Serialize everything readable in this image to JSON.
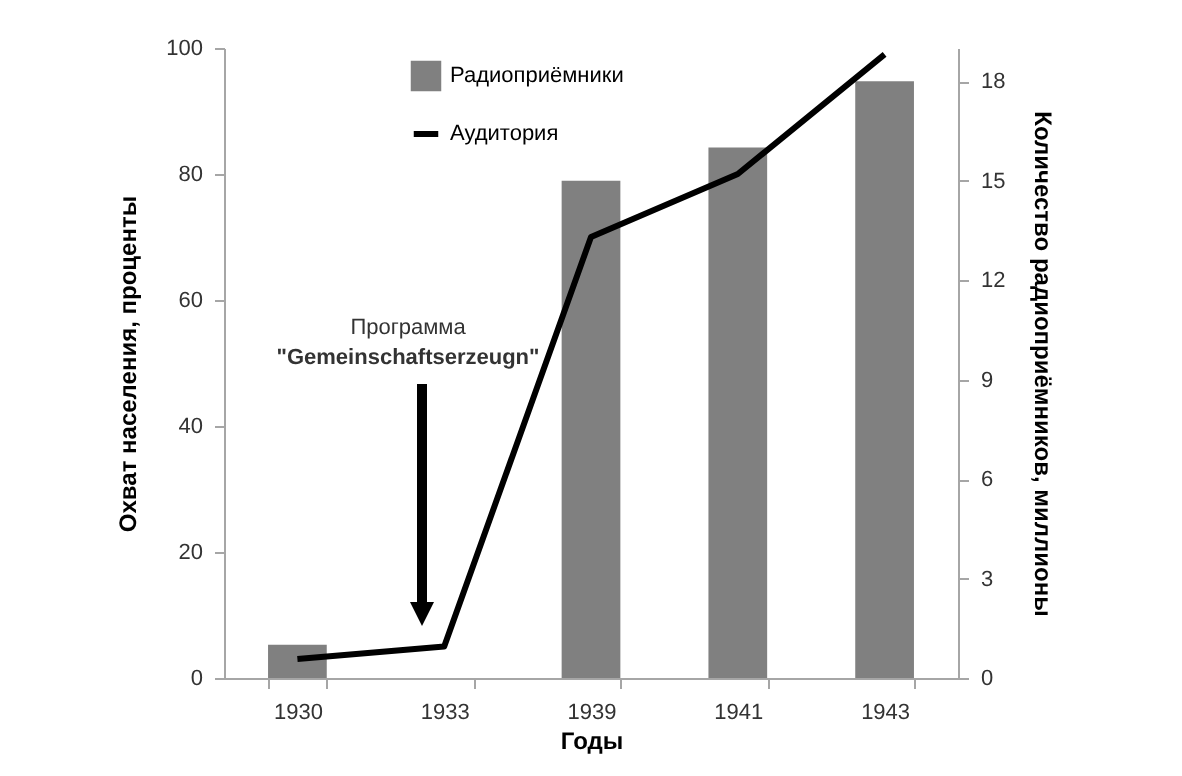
{
  "chart_data": {
    "type": "bar",
    "categories": [
      "1930",
      "1933",
      "1939",
      "1941",
      "1943"
    ],
    "xlabel": "Годы",
    "ylabel": "Охват населения, проценты",
    "y2label": "Количество радиоприёмников, миллионы",
    "ylim": [
      0,
      100
    ],
    "yticks": [
      0,
      20,
      40,
      60,
      80,
      100
    ],
    "y2lim": [
      0,
      19
    ],
    "y2ticks": [
      0,
      3,
      6,
      9,
      12,
      15,
      18
    ],
    "legend": "top",
    "grid": false,
    "series": [
      {
        "name": "Радиоприёмники",
        "axis": "y2",
        "color": "#808080",
        "values": [
          1,
          null,
          15,
          16,
          18
        ]
      },
      {
        "name": "Аудитория",
        "type": "line",
        "color": "#000000",
        "values": [
          3,
          5,
          70,
          80,
          99
        ]
      }
    ],
    "annotations": [
      "Программа\n\"Gemeinschaftserzeugn\""
    ]
  }
}
